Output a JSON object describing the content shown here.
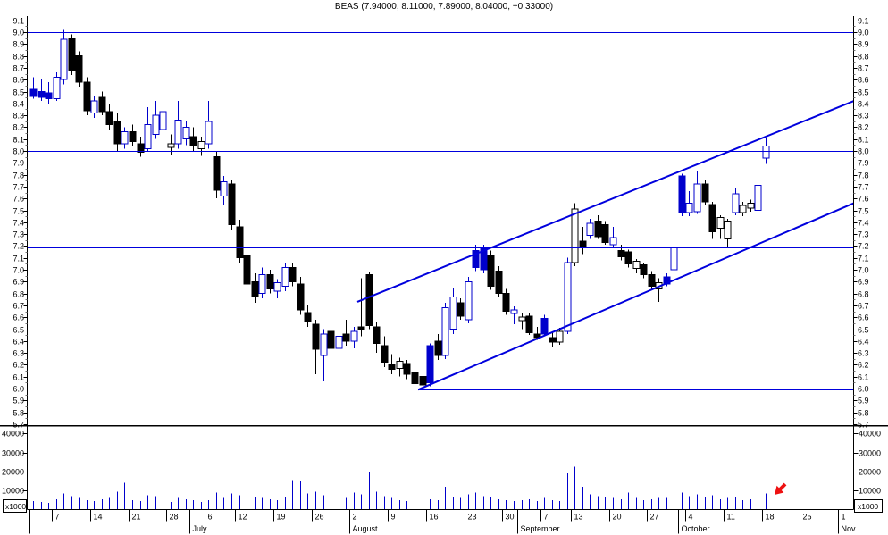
{
  "title": "BEAS (7.94000, 8.11000, 7.89000, 8.04000, +0.33000)",
  "colors": {
    "candle_blue": "#0000cc",
    "candle_black": "#000000",
    "line_blue": "#0000dd",
    "volume_blue": "#0000cc",
    "arrow_red": "#ee1111",
    "axis_black": "#000000",
    "background": "#ffffff"
  },
  "chart_data": {
    "type": "candlestick",
    "symbol": "BEAS",
    "last_quote": {
      "open": 7.94,
      "high": 8.11,
      "low": 7.89,
      "close": 8.04,
      "change": "+0.33"
    },
    "price_axis": {
      "min": 5.7,
      "max": 9.1,
      "step": 0.1,
      "labels_both_sides": true
    },
    "volume_axis": {
      "ticks": [
        10000,
        20000,
        30000,
        40000
      ],
      "scale_label": "x1000"
    },
    "x_axis": {
      "months": [
        {
          "label": "",
          "start_index": 0
        },
        {
          "label": "July",
          "start_index": 21
        },
        {
          "label": "August",
          "start_index": 42
        },
        {
          "label": "September",
          "start_index": 64
        },
        {
          "label": "October",
          "start_index": 85
        },
        {
          "label": "Nov",
          "start_index": 106
        }
      ],
      "weeks": [
        {
          "label": "7",
          "index": 3
        },
        {
          "label": "14",
          "index": 8
        },
        {
          "label": "21",
          "index": 13
        },
        {
          "label": "28",
          "index": 18
        },
        {
          "label": "6",
          "index": 23
        },
        {
          "label": "12",
          "index": 27
        },
        {
          "label": "19",
          "index": 32
        },
        {
          "label": "26",
          "index": 37
        },
        {
          "label": "2",
          "index": 42
        },
        {
          "label": "9",
          "index": 47
        },
        {
          "label": "16",
          "index": 52
        },
        {
          "label": "23",
          "index": 57
        },
        {
          "label": "30",
          "index": 62
        },
        {
          "label": "7",
          "index": 67
        },
        {
          "label": "13",
          "index": 71
        },
        {
          "label": "20",
          "index": 76
        },
        {
          "label": "27",
          "index": 81
        },
        {
          "label": "4",
          "index": 86
        },
        {
          "label": "11",
          "index": 91
        },
        {
          "label": "18",
          "index": 96
        },
        {
          "label": "25",
          "index": 101
        },
        {
          "label": "1",
          "index": 106
        }
      ]
    },
    "candle_style_legend": {
      "b": "filled-black-down",
      "B": "filled-blue-down",
      "h": "hollow-black-up",
      "H": "hollow-blue-up"
    },
    "candles": [
      [
        "Jun 2",
        8.52,
        8.62,
        8.44,
        8.46,
        "B",
        4500
      ],
      [
        "Jun 3",
        8.5,
        8.6,
        8.42,
        8.45,
        "B",
        4000
      ],
      [
        "Jun 4",
        8.49,
        8.58,
        8.4,
        8.44,
        "B",
        3500
      ],
      [
        "Jun 7",
        8.44,
        8.66,
        8.42,
        8.62,
        "H",
        5500
      ],
      [
        "Jun 8",
        8.6,
        9.02,
        8.56,
        8.94,
        "H",
        8500
      ],
      [
        "Jun 9",
        8.95,
        8.98,
        8.64,
        8.68,
        "b",
        7000
      ],
      [
        "Jun 10",
        8.8,
        8.84,
        8.54,
        8.58,
        "b",
        6000
      ],
      [
        "Jun 11",
        8.58,
        8.62,
        8.3,
        8.34,
        "b",
        5000
      ],
      [
        "Jun 14",
        8.32,
        8.46,
        8.28,
        8.42,
        "H",
        4500
      ],
      [
        "Jun 15",
        8.45,
        8.5,
        8.3,
        8.33,
        "b",
        5500
      ],
      [
        "Jun 16",
        8.33,
        8.4,
        8.18,
        8.22,
        "b",
        6000
      ],
      [
        "Jun 17",
        8.25,
        8.32,
        8.0,
        8.06,
        "b",
        9500
      ],
      [
        "Jun 18",
        8.06,
        8.2,
        8.02,
        8.16,
        "H",
        14000
      ],
      [
        "Jun 21",
        8.16,
        8.22,
        8.04,
        8.08,
        "b",
        5000
      ],
      [
        "Jun 22",
        8.06,
        8.12,
        7.95,
        7.99,
        "b",
        4500
      ],
      [
        "Jun 23",
        8.02,
        8.37,
        8.0,
        8.22,
        "H",
        7500
      ],
      [
        "Jun 24",
        8.14,
        8.42,
        8.1,
        8.3,
        "H",
        7000
      ],
      [
        "Jun 25",
        8.18,
        8.4,
        8.14,
        8.33,
        "H",
        6500
      ],
      [
        "Jun 28",
        8.03,
        8.14,
        7.97,
        8.06,
        "h",
        4000
      ],
      [
        "Jun 29",
        8.06,
        8.42,
        8.02,
        8.26,
        "H",
        6000
      ],
      [
        "Jun 30",
        8.1,
        8.25,
        8.05,
        8.2,
        "H",
        5500
      ],
      [
        "Jul 1",
        8.12,
        8.2,
        8.0,
        8.05,
        "b",
        5000
      ],
      [
        "Jul 2",
        8.02,
        8.12,
        7.96,
        8.08,
        "h",
        4000
      ],
      [
        "Jul 6",
        8.06,
        8.42,
        8.02,
        8.25,
        "H",
        5000
      ],
      [
        "Jul 7",
        7.95,
        8.0,
        7.6,
        7.67,
        "b",
        9000
      ],
      [
        "Jul 8",
        7.62,
        7.79,
        7.55,
        7.74,
        "H",
        6000
      ],
      [
        "Jul 9",
        7.72,
        7.76,
        7.34,
        7.38,
        "b",
        8500
      ],
      [
        "Jul 12",
        7.36,
        7.42,
        7.06,
        7.1,
        "b",
        7500
      ],
      [
        "Jul 13",
        7.12,
        7.18,
        6.82,
        6.88,
        "b",
        8000
      ],
      [
        "Jul 14",
        6.9,
        6.97,
        6.72,
        6.77,
        "b",
        6500
      ],
      [
        "Jul 15",
        6.8,
        7.02,
        6.76,
        6.96,
        "H",
        6000
      ],
      [
        "Jul 16",
        6.96,
        7.0,
        6.8,
        6.84,
        "b",
        5500
      ],
      [
        "Jul 19",
        6.82,
        6.92,
        6.76,
        6.89,
        "H",
        5000
      ],
      [
        "Jul 20",
        6.86,
        7.06,
        6.82,
        7.02,
        "H",
        6500
      ],
      [
        "Jul 21",
        7.02,
        7.06,
        6.86,
        6.9,
        "b",
        15500
      ],
      [
        "Jul 22",
        6.88,
        6.94,
        6.62,
        6.66,
        "b",
        15000
      ],
      [
        "Jul 23",
        6.64,
        6.7,
        6.52,
        6.56,
        "b",
        8500
      ],
      [
        "Jul 26",
        6.54,
        6.58,
        6.12,
        6.33,
        "b",
        9500
      ],
      [
        "Jul 27",
        6.28,
        6.5,
        6.06,
        6.46,
        "H",
        7500
      ],
      [
        "Jul 28",
        6.48,
        6.54,
        6.3,
        6.34,
        "b",
        8000
      ],
      [
        "Jul 29",
        6.34,
        6.47,
        6.28,
        6.44,
        "H",
        7000
      ],
      [
        "Jul 30",
        6.46,
        6.58,
        6.36,
        6.4,
        "b",
        6000
      ],
      [
        "Aug 2",
        6.4,
        6.52,
        6.34,
        6.48,
        "H",
        9000
      ],
      [
        "Aug 3",
        6.52,
        6.93,
        6.44,
        6.5,
        "b",
        8000
      ],
      [
        "Aug 4",
        6.96,
        6.98,
        6.5,
        6.53,
        "b",
        19500
      ],
      [
        "Aug 5",
        6.52,
        6.56,
        6.3,
        6.38,
        "b",
        9500
      ],
      [
        "Aug 6",
        6.36,
        6.44,
        6.18,
        6.22,
        "b",
        7000
      ],
      [
        "Aug 9",
        6.2,
        6.29,
        6.12,
        6.16,
        "b",
        6000
      ],
      [
        "Aug 10",
        6.17,
        6.26,
        6.1,
        6.23,
        "h",
        5000
      ],
      [
        "Aug 11",
        6.21,
        6.24,
        6.08,
        6.12,
        "b",
        4500
      ],
      [
        "Aug 12",
        6.13,
        6.16,
        5.99,
        6.04,
        "b",
        6500
      ],
      [
        "Aug 13",
        6.1,
        6.14,
        5.99,
        6.03,
        "b",
        6000
      ],
      [
        "Aug 16",
        6.36,
        6.38,
        6.02,
        6.05,
        "B",
        5500
      ],
      [
        "Aug 17",
        6.4,
        6.46,
        6.24,
        6.28,
        "b",
        5000
      ],
      [
        "Aug 18",
        6.28,
        6.72,
        6.25,
        6.68,
        "H",
        12000
      ],
      [
        "Aug 19",
        6.5,
        6.85,
        6.46,
        6.77,
        "H",
        6500
      ],
      [
        "Aug 20",
        6.72,
        6.76,
        6.58,
        6.61,
        "b",
        6000
      ],
      [
        "Aug 23",
        6.58,
        6.94,
        6.55,
        6.9,
        "H",
        8000
      ],
      [
        "Aug 24",
        7.16,
        7.21,
        6.99,
        7.02,
        "B",
        9000
      ],
      [
        "Aug 25",
        7.18,
        7.21,
        6.97,
        7.0,
        "B",
        7000
      ],
      [
        "Aug 26",
        7.12,
        7.16,
        6.83,
        6.86,
        "b",
        6500
      ],
      [
        "Aug 27",
        6.99,
        7.03,
        6.77,
        6.8,
        "b",
        5500
      ],
      [
        "Aug 30",
        6.8,
        6.84,
        6.62,
        6.65,
        "b",
        5000
      ],
      [
        "Aug 31",
        6.63,
        6.69,
        6.54,
        6.66,
        "H",
        4500
      ],
      [
        "Sep 1",
        6.57,
        6.64,
        6.5,
        6.6,
        "h",
        5000
      ],
      [
        "Sep 2",
        6.61,
        6.63,
        6.45,
        6.47,
        "b",
        5500
      ],
      [
        "Sep 3",
        6.46,
        6.52,
        6.41,
        6.43,
        "b",
        4500
      ],
      [
        "Sep 7",
        6.59,
        6.62,
        6.44,
        6.46,
        "B",
        6000
      ],
      [
        "Sep 8",
        6.43,
        6.48,
        6.35,
        6.39,
        "b",
        5000
      ],
      [
        "Sep 9",
        6.39,
        6.51,
        6.37,
        6.48,
        "h",
        4500
      ],
      [
        "Sep 10",
        6.48,
        7.1,
        6.46,
        7.06,
        "H",
        19000
      ],
      [
        "Sep 13",
        7.06,
        7.56,
        7.03,
        7.51,
        "h",
        22500
      ],
      [
        "Sep 14",
        7.24,
        7.36,
        7.13,
        7.2,
        "b",
        12000
      ],
      [
        "Sep 15",
        7.29,
        7.43,
        7.26,
        7.39,
        "H",
        8000
      ],
      [
        "Sep 16",
        7.41,
        7.46,
        7.26,
        7.28,
        "b",
        7000
      ],
      [
        "Sep 17",
        7.38,
        7.41,
        7.21,
        7.23,
        "b",
        6500
      ],
      [
        "Sep 20",
        7.21,
        7.36,
        7.19,
        7.27,
        "H",
        6000
      ],
      [
        "Sep 21",
        7.16,
        7.21,
        7.08,
        7.11,
        "b",
        5500
      ],
      [
        "Sep 22",
        7.15,
        7.17,
        7.02,
        7.05,
        "b",
        9000
      ],
      [
        "Sep 23",
        7.01,
        7.09,
        6.97,
        7.07,
        "h",
        6000
      ],
      [
        "Sep 24",
        7.04,
        7.06,
        6.93,
        6.96,
        "b",
        5000
      ],
      [
        "Sep 27",
        6.96,
        6.99,
        6.83,
        6.86,
        "b",
        5500
      ],
      [
        "Sep 28",
        6.84,
        6.93,
        6.73,
        6.89,
        "h",
        6000
      ],
      [
        "Sep 29",
        6.94,
        6.97,
        6.86,
        6.88,
        "B",
        6000
      ],
      [
        "Sep 30",
        7.0,
        7.3,
        6.95,
        7.19,
        "H",
        22000
      ],
      [
        "Oct 1",
        7.79,
        7.81,
        7.45,
        7.48,
        "B",
        9000
      ],
      [
        "Oct 4",
        7.48,
        7.66,
        7.45,
        7.56,
        "H",
        7000
      ],
      [
        "Oct 5",
        7.49,
        7.83,
        7.47,
        7.72,
        "H",
        8000
      ],
      [
        "Oct 6",
        7.72,
        7.76,
        7.55,
        7.57,
        "b",
        6500
      ],
      [
        "Oct 7",
        7.55,
        7.57,
        7.26,
        7.32,
        "b",
        7500
      ],
      [
        "Oct 8",
        7.35,
        7.46,
        7.26,
        7.44,
        "h",
        5500
      ],
      [
        "Oct 11",
        7.26,
        7.43,
        7.19,
        7.41,
        "h",
        6000
      ],
      [
        "Oct 12",
        7.48,
        7.69,
        7.46,
        7.64,
        "H",
        6500
      ],
      [
        "Oct 13",
        7.48,
        7.57,
        7.45,
        7.54,
        "h",
        5000
      ],
      [
        "Oct 14",
        7.52,
        7.59,
        7.49,
        7.56,
        "h",
        5500
      ],
      [
        "Oct 15",
        7.5,
        7.78,
        7.47,
        7.71,
        "H",
        6500
      ],
      [
        "Oct 18",
        7.94,
        8.11,
        7.89,
        8.04,
        "H",
        8500
      ]
    ],
    "horizontal_lines": [
      {
        "price": 9.0,
        "full_width": true
      },
      {
        "price": 8.0,
        "full_width": true
      },
      {
        "price": 7.19,
        "full_width": true
      },
      {
        "price": 5.99,
        "from_candle_index": 50.5
      }
    ],
    "trend_lines": [
      {
        "name": "channel-upper",
        "i1": 42.5,
        "p1": 6.73,
        "i2": 107.5,
        "p2": 8.42
      },
      {
        "name": "channel-lower",
        "i1": 50.5,
        "p1": 5.99,
        "i2": 107.5,
        "p2": 7.56
      }
    ],
    "annotations": [
      {
        "type": "arrow",
        "direction": "down-left",
        "color_key": "arrow_red",
        "x_index": 97.2,
        "pane": "volume"
      }
    ]
  }
}
